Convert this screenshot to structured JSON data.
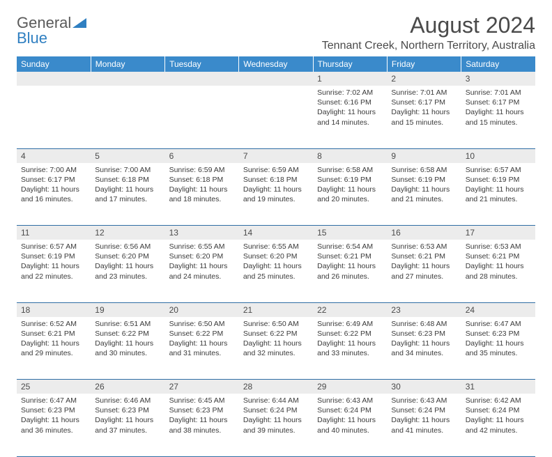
{
  "logo": {
    "word1": "General",
    "word2": "Blue"
  },
  "title": "August 2024",
  "location": "Tennant Creek, Northern Territory, Australia",
  "colors": {
    "header_bg": "#3a8acb",
    "header_text": "#ffffff",
    "daynum_bg": "#ececec",
    "row_border": "#2e6da4",
    "logo_gray": "#5a5a5a",
    "logo_blue": "#2f7fc1"
  },
  "day_headers": [
    "Sunday",
    "Monday",
    "Tuesday",
    "Wednesday",
    "Thursday",
    "Friday",
    "Saturday"
  ],
  "weeks": [
    [
      null,
      null,
      null,
      null,
      {
        "n": "1",
        "sunrise": "7:02 AM",
        "sunset": "6:16 PM",
        "dl1": "Daylight: 11 hours",
        "dl2": "and 14 minutes."
      },
      {
        "n": "2",
        "sunrise": "7:01 AM",
        "sunset": "6:17 PM",
        "dl1": "Daylight: 11 hours",
        "dl2": "and 15 minutes."
      },
      {
        "n": "3",
        "sunrise": "7:01 AM",
        "sunset": "6:17 PM",
        "dl1": "Daylight: 11 hours",
        "dl2": "and 15 minutes."
      }
    ],
    [
      {
        "n": "4",
        "sunrise": "7:00 AM",
        "sunset": "6:17 PM",
        "dl1": "Daylight: 11 hours",
        "dl2": "and 16 minutes."
      },
      {
        "n": "5",
        "sunrise": "7:00 AM",
        "sunset": "6:18 PM",
        "dl1": "Daylight: 11 hours",
        "dl2": "and 17 minutes."
      },
      {
        "n": "6",
        "sunrise": "6:59 AM",
        "sunset": "6:18 PM",
        "dl1": "Daylight: 11 hours",
        "dl2": "and 18 minutes."
      },
      {
        "n": "7",
        "sunrise": "6:59 AM",
        "sunset": "6:18 PM",
        "dl1": "Daylight: 11 hours",
        "dl2": "and 19 minutes."
      },
      {
        "n": "8",
        "sunrise": "6:58 AM",
        "sunset": "6:19 PM",
        "dl1": "Daylight: 11 hours",
        "dl2": "and 20 minutes."
      },
      {
        "n": "9",
        "sunrise": "6:58 AM",
        "sunset": "6:19 PM",
        "dl1": "Daylight: 11 hours",
        "dl2": "and 21 minutes."
      },
      {
        "n": "10",
        "sunrise": "6:57 AM",
        "sunset": "6:19 PM",
        "dl1": "Daylight: 11 hours",
        "dl2": "and 21 minutes."
      }
    ],
    [
      {
        "n": "11",
        "sunrise": "6:57 AM",
        "sunset": "6:19 PM",
        "dl1": "Daylight: 11 hours",
        "dl2": "and 22 minutes."
      },
      {
        "n": "12",
        "sunrise": "6:56 AM",
        "sunset": "6:20 PM",
        "dl1": "Daylight: 11 hours",
        "dl2": "and 23 minutes."
      },
      {
        "n": "13",
        "sunrise": "6:55 AM",
        "sunset": "6:20 PM",
        "dl1": "Daylight: 11 hours",
        "dl2": "and 24 minutes."
      },
      {
        "n": "14",
        "sunrise": "6:55 AM",
        "sunset": "6:20 PM",
        "dl1": "Daylight: 11 hours",
        "dl2": "and 25 minutes."
      },
      {
        "n": "15",
        "sunrise": "6:54 AM",
        "sunset": "6:21 PM",
        "dl1": "Daylight: 11 hours",
        "dl2": "and 26 minutes."
      },
      {
        "n": "16",
        "sunrise": "6:53 AM",
        "sunset": "6:21 PM",
        "dl1": "Daylight: 11 hours",
        "dl2": "and 27 minutes."
      },
      {
        "n": "17",
        "sunrise": "6:53 AM",
        "sunset": "6:21 PM",
        "dl1": "Daylight: 11 hours",
        "dl2": "and 28 minutes."
      }
    ],
    [
      {
        "n": "18",
        "sunrise": "6:52 AM",
        "sunset": "6:21 PM",
        "dl1": "Daylight: 11 hours",
        "dl2": "and 29 minutes."
      },
      {
        "n": "19",
        "sunrise": "6:51 AM",
        "sunset": "6:22 PM",
        "dl1": "Daylight: 11 hours",
        "dl2": "and 30 minutes."
      },
      {
        "n": "20",
        "sunrise": "6:50 AM",
        "sunset": "6:22 PM",
        "dl1": "Daylight: 11 hours",
        "dl2": "and 31 minutes."
      },
      {
        "n": "21",
        "sunrise": "6:50 AM",
        "sunset": "6:22 PM",
        "dl1": "Daylight: 11 hours",
        "dl2": "and 32 minutes."
      },
      {
        "n": "22",
        "sunrise": "6:49 AM",
        "sunset": "6:22 PM",
        "dl1": "Daylight: 11 hours",
        "dl2": "and 33 minutes."
      },
      {
        "n": "23",
        "sunrise": "6:48 AM",
        "sunset": "6:23 PM",
        "dl1": "Daylight: 11 hours",
        "dl2": "and 34 minutes."
      },
      {
        "n": "24",
        "sunrise": "6:47 AM",
        "sunset": "6:23 PM",
        "dl1": "Daylight: 11 hours",
        "dl2": "and 35 minutes."
      }
    ],
    [
      {
        "n": "25",
        "sunrise": "6:47 AM",
        "sunset": "6:23 PM",
        "dl1": "Daylight: 11 hours",
        "dl2": "and 36 minutes."
      },
      {
        "n": "26",
        "sunrise": "6:46 AM",
        "sunset": "6:23 PM",
        "dl1": "Daylight: 11 hours",
        "dl2": "and 37 minutes."
      },
      {
        "n": "27",
        "sunrise": "6:45 AM",
        "sunset": "6:23 PM",
        "dl1": "Daylight: 11 hours",
        "dl2": "and 38 minutes."
      },
      {
        "n": "28",
        "sunrise": "6:44 AM",
        "sunset": "6:24 PM",
        "dl1": "Daylight: 11 hours",
        "dl2": "and 39 minutes."
      },
      {
        "n": "29",
        "sunrise": "6:43 AM",
        "sunset": "6:24 PM",
        "dl1": "Daylight: 11 hours",
        "dl2": "and 40 minutes."
      },
      {
        "n": "30",
        "sunrise": "6:43 AM",
        "sunset": "6:24 PM",
        "dl1": "Daylight: 11 hours",
        "dl2": "and 41 minutes."
      },
      {
        "n": "31",
        "sunrise": "6:42 AM",
        "sunset": "6:24 PM",
        "dl1": "Daylight: 11 hours",
        "dl2": "and 42 minutes."
      }
    ]
  ],
  "labels": {
    "sunrise": "Sunrise: ",
    "sunset": "Sunset: "
  }
}
